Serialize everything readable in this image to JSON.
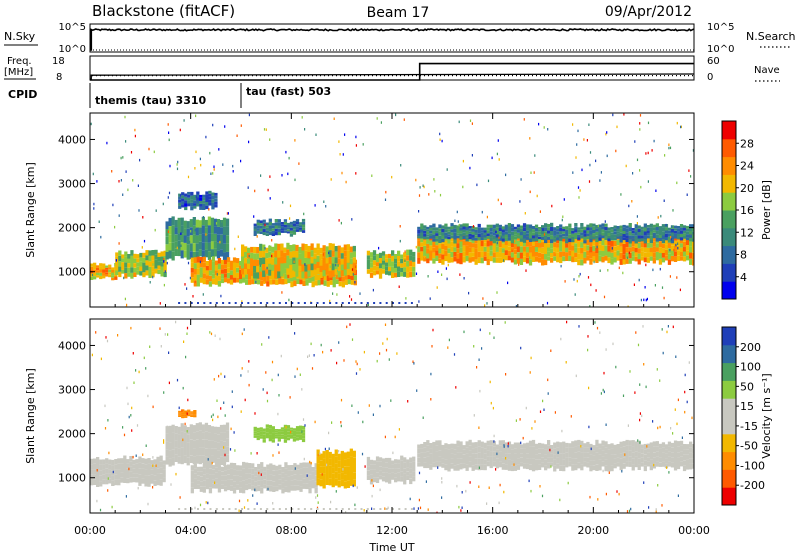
{
  "header": {
    "title": "Blackstone (fitACF)",
    "beam": "Beam 17",
    "date": "09/Apr/2012"
  },
  "top_panels": {
    "nsky": {
      "label": "N.Sky",
      "tick_top": "10^5",
      "tick_bottom": "10^0"
    },
    "nsearch": {
      "label": "N.Search",
      "tick_top": "10^5",
      "tick_bottom": "10^0"
    },
    "freq": {
      "label_line1": "Freq.",
      "label_line2": "[MHz]",
      "tick_top": "18",
      "tick_bottom": "8"
    },
    "nave": {
      "label": "Nave",
      "tick_top": "60",
      "tick_bottom": "0"
    },
    "cpid": {
      "label": "CPID",
      "segments": [
        {
          "start_hour": 0,
          "text": "themis (tau) 3310"
        },
        {
          "start_hour": 6,
          "text": "tau (fast) 503"
        }
      ]
    },
    "nsky_trace": {
      "baseline_log10": 0.0,
      "level_log10": 4.2,
      "jump_hour": 0.05
    },
    "freq_trace": {
      "before_mhz": 10.0,
      "after_mhz": 10.5,
      "jump_hour": 0.05
    },
    "nave_trace": {
      "before": 0,
      "after": 41,
      "jump_hour": 13.1,
      "dotted_level": 11
    }
  },
  "chart_data": [
    {
      "type": "heatmap",
      "name": "power",
      "ylabel": "Slant Range [km]",
      "y_ticks": [
        1000,
        2000,
        3000,
        4000
      ],
      "ylim": [
        200,
        4600
      ],
      "xlim": [
        0,
        24
      ],
      "colorbar": {
        "label": "Power [dB]",
        "ticks": [
          "28",
          "24",
          "20",
          "16",
          "12",
          "8",
          "4"
        ],
        "range": [
          0,
          32
        ],
        "colors": [
          "#0000ee",
          "#1f3fb8",
          "#2e6ba0",
          "#3a8a7a",
          "#4aa060",
          "#8ccb40",
          "#f2b800",
          "#ff8c00",
          "#ff5a00",
          "#ee0000"
        ]
      },
      "bands": [
        {
          "t0": 0.0,
          "t1": 1.0,
          "r0": 850,
          "r1": 1150,
          "value": 22
        },
        {
          "t0": 1.0,
          "t1": 3.0,
          "r0": 900,
          "r1": 1450,
          "value": 18
        },
        {
          "t0": 3.0,
          "t1": 5.5,
          "r0": 1300,
          "r1": 2200,
          "value": 12
        },
        {
          "t0": 3.5,
          "t1": 5.0,
          "r0": 2450,
          "r1": 2800,
          "value": 8
        },
        {
          "t0": 4.0,
          "t1": 10.5,
          "r0": 700,
          "r1": 1300,
          "value": 22
        },
        {
          "t0": 6.0,
          "t1": 10.5,
          "r0": 900,
          "r1": 1600,
          "value": 20
        },
        {
          "t0": 6.5,
          "t1": 8.5,
          "r0": 1850,
          "r1": 2150,
          "value": 10
        },
        {
          "t0": 11.0,
          "t1": 12.8,
          "r0": 900,
          "r1": 1450,
          "value": 18
        },
        {
          "t0": 13.0,
          "t1": 24.0,
          "r0": 1200,
          "r1": 1800,
          "value": 22
        },
        {
          "t0": 13.0,
          "t1": 24.0,
          "r0": 1700,
          "r1": 2050,
          "value": 10
        }
      ]
    },
    {
      "type": "heatmap",
      "name": "velocity",
      "xlabel": "Time UT",
      "ylabel": "Slant Range [km]",
      "x_ticks": [
        "00:00",
        "04:00",
        "08:00",
        "12:00",
        "16:00",
        "20:00",
        "00:00"
      ],
      "y_ticks": [
        1000,
        2000,
        3000,
        4000
      ],
      "ylim": [
        200,
        4600
      ],
      "xlim": [
        0,
        24
      ],
      "colorbar": {
        "label": "Velocity [m s⁻¹]",
        "ticks": [
          "200",
          "100",
          "50",
          "15",
          "-15",
          "-50",
          "-100",
          "-200"
        ],
        "range": [
          -250,
          250
        ],
        "colors": [
          "#ee0000",
          "#ff5a00",
          "#ff8c00",
          "#f2b800",
          "#c8c8c0",
          "#c8c8c0",
          "#8ccb40",
          "#4aa060",
          "#2e6ba0",
          "#1f3fb8"
        ]
      },
      "bands": [
        {
          "t0": 0.0,
          "t1": 3.0,
          "r0": 850,
          "r1": 1450,
          "value": 0
        },
        {
          "t0": 3.0,
          "t1": 5.5,
          "r0": 1300,
          "r1": 2200,
          "value": 5
        },
        {
          "t0": 3.5,
          "t1": 4.2,
          "r0": 2350,
          "r1": 2550,
          "value": -120
        },
        {
          "t0": 4.0,
          "t1": 9.0,
          "r0": 700,
          "r1": 1300,
          "value": 0
        },
        {
          "t0": 9.0,
          "t1": 10.5,
          "r0": 800,
          "r1": 1600,
          "value": -70
        },
        {
          "t0": 6.5,
          "t1": 8.5,
          "r0": 1850,
          "r1": 2150,
          "value": 70
        },
        {
          "t0": 11.0,
          "t1": 12.8,
          "r0": 900,
          "r1": 1450,
          "value": -10
        },
        {
          "t0": 13.0,
          "t1": 24.0,
          "r0": 1200,
          "r1": 1800,
          "value": 0
        }
      ]
    }
  ]
}
